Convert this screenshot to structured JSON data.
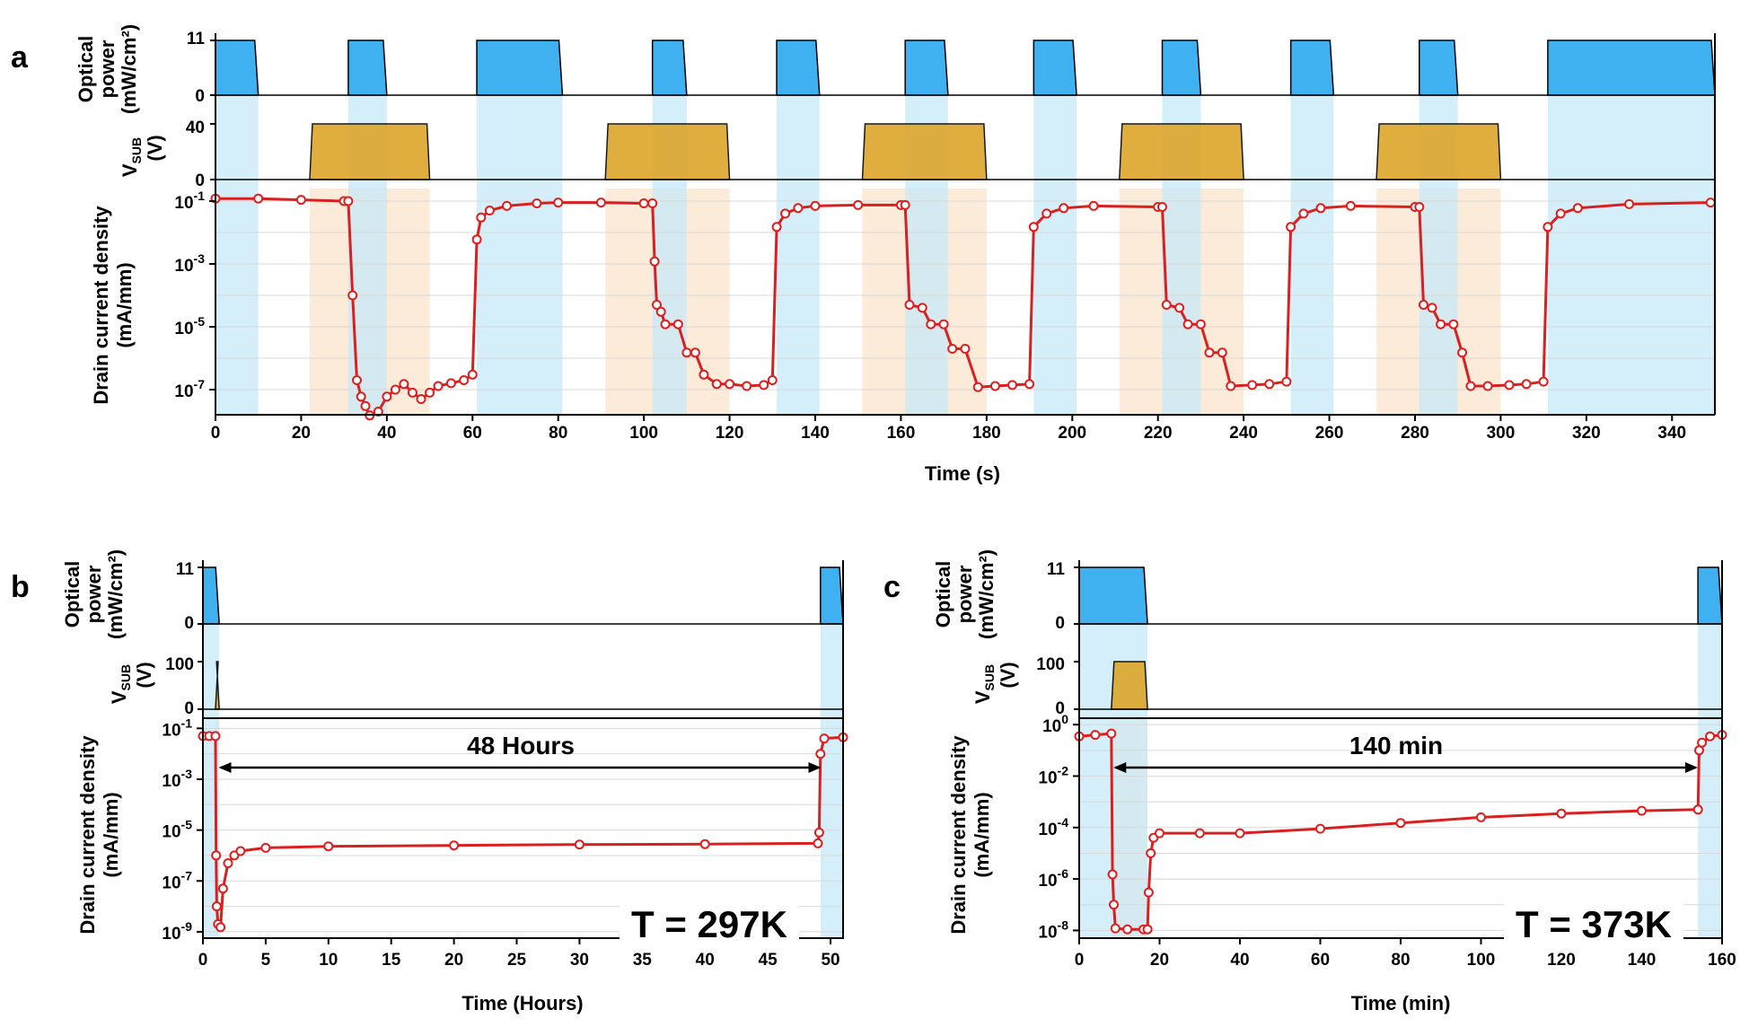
{
  "colors": {
    "light_on": "#3fb0f0",
    "light_band": "#c6e9f7",
    "vsub_fill": "#dca62a",
    "vsub_band": "#fde9d6",
    "data_line": "#d92020",
    "marker": "#e01e1e",
    "axis": "#000000"
  },
  "panels": {
    "a": {
      "label": "a",
      "optical_ylabel": [
        "Optical",
        "power",
        "(mW/cm²)"
      ],
      "optical_yticks": [
        "11",
        "0"
      ],
      "vsub_ylabel_main": "V",
      "vsub_ylabel_sub": "SUB",
      "vsub_ylabel_unit": "(V)",
      "vsub_yticks": [
        "40",
        "0"
      ],
      "current_ylabel": [
        "Drain current density",
        "(mA/mm)"
      ],
      "current_yticks": [
        {
          "base": "10",
          "exp": "-1"
        },
        {
          "base": "10",
          "exp": "-3"
        },
        {
          "base": "10",
          "exp": "-5"
        },
        {
          "base": "10",
          "exp": "-7"
        }
      ],
      "xlabel": "Time (s)",
      "xticks": [
        "0",
        "20",
        "40",
        "60",
        "80",
        "100",
        "120",
        "140",
        "160",
        "180",
        "200",
        "220",
        "240",
        "260",
        "280",
        "300",
        "320",
        "340"
      ]
    },
    "b": {
      "label": "b",
      "optical_ylabel": [
        "Optical",
        "power",
        "(mW/cm²)"
      ],
      "optical_yticks": [
        "11",
        "0"
      ],
      "vsub_ylabel_main": "V",
      "vsub_ylabel_sub": "SUB",
      "vsub_ylabel_unit": "(V)",
      "vsub_yticks": [
        "100",
        "0"
      ],
      "current_ylabel": [
        "Drain current density",
        "(mA/mm)"
      ],
      "current_yticks": [
        {
          "base": "10",
          "exp": "-1"
        },
        {
          "base": "10",
          "exp": "-3"
        },
        {
          "base": "10",
          "exp": "-5"
        },
        {
          "base": "10",
          "exp": "-7"
        },
        {
          "base": "10",
          "exp": "-9"
        }
      ],
      "xlabel": "Time (Hours)",
      "xticks": [
        "0",
        "5",
        "10",
        "15",
        "20",
        "25",
        "30",
        "35",
        "40",
        "45",
        "50"
      ],
      "annotation": "48 Hours",
      "temperature": "T = 297K"
    },
    "c": {
      "label": "c",
      "optical_ylabel": [
        "Optical",
        "power",
        "(mW/cm²)"
      ],
      "optical_yticks": [
        "11",
        "0"
      ],
      "vsub_ylabel_main": "V",
      "vsub_ylabel_sub": "SUB",
      "vsub_ylabel_unit": "(V)",
      "vsub_yticks": [
        "100",
        "0"
      ],
      "current_ylabel": [
        "Drain current density",
        "(mA/mm)"
      ],
      "current_yticks": [
        {
          "base": "10",
          "exp": "0"
        },
        {
          "base": "10",
          "exp": "-2"
        },
        {
          "base": "10",
          "exp": "-4"
        },
        {
          "base": "10",
          "exp": "-6"
        },
        {
          "base": "10",
          "exp": "-8"
        }
      ],
      "xlabel": "Time (min)",
      "xticks": [
        "0",
        "20",
        "40",
        "60",
        "80",
        "100",
        "120",
        "140",
        "160"
      ],
      "annotation": "140 min",
      "temperature": "T = 373K"
    }
  },
  "chart_data": [
    {
      "type": "line",
      "panel": "a",
      "title": "",
      "xlabel": "Time (s)",
      "xlim": [
        0,
        350
      ],
      "optical_power": {
        "ylabel": "Optical power (mW/cm²)",
        "ylim": [
          0,
          11
        ],
        "level": 11,
        "on_intervals": [
          [
            0,
            10
          ],
          [
            31,
            40
          ],
          [
            61,
            81
          ],
          [
            102,
            110
          ],
          [
            131,
            141
          ],
          [
            161,
            171
          ],
          [
            191,
            201
          ],
          [
            221,
            230
          ],
          [
            251,
            261
          ],
          [
            281,
            290
          ],
          [
            311,
            350
          ]
        ]
      },
      "vsub": {
        "ylabel": "VSUB (V)",
        "ylim": [
          0,
          40
        ],
        "level": 40,
        "on_intervals": [
          [
            22,
            50
          ],
          [
            91,
            120
          ],
          [
            151,
            180
          ],
          [
            211,
            240
          ],
          [
            271,
            300
          ]
        ]
      },
      "current": {
        "ylabel": "Drain current density (mA/mm)",
        "scale": "log",
        "ylim": [
          1e-08,
          0.5
        ],
        "points": [
          [
            0,
            0.12
          ],
          [
            10,
            0.12
          ],
          [
            20,
            0.11
          ],
          [
            30,
            0.1
          ],
          [
            31,
            0.1
          ],
          [
            32,
            0.0001
          ],
          [
            33,
            2e-07
          ],
          [
            34,
            6e-08
          ],
          [
            35,
            3e-08
          ],
          [
            36,
            1.5e-08
          ],
          [
            38,
            2e-08
          ],
          [
            40,
            6e-08
          ],
          [
            42,
            1e-07
          ],
          [
            44,
            1.5e-07
          ],
          [
            46,
            8e-08
          ],
          [
            48,
            5e-08
          ],
          [
            50,
            8e-08
          ],
          [
            52,
            1.3e-07
          ],
          [
            55,
            1.6e-07
          ],
          [
            58,
            2e-07
          ],
          [
            60,
            3e-07
          ],
          [
            61,
            0.006
          ],
          [
            62,
            0.03
          ],
          [
            64,
            0.05
          ],
          [
            68,
            0.07
          ],
          [
            75,
            0.085
          ],
          [
            80,
            0.09
          ],
          [
            90,
            0.09
          ],
          [
            100,
            0.085
          ],
          [
            102,
            0.085
          ],
          [
            102.5,
            0.0012
          ],
          [
            103,
            5e-05
          ],
          [
            104,
            3e-05
          ],
          [
            105,
            1.2e-05
          ],
          [
            108,
            1.2e-05
          ],
          [
            110,
            1.5e-06
          ],
          [
            112,
            1.5e-06
          ],
          [
            114,
            3e-07
          ],
          [
            117,
            1.5e-07
          ],
          [
            120,
            1.5e-07
          ],
          [
            124,
            1.3e-07
          ],
          [
            128,
            1.4e-07
          ],
          [
            130,
            2e-07
          ],
          [
            131,
            0.015
          ],
          [
            133,
            0.04
          ],
          [
            136,
            0.06
          ],
          [
            140,
            0.07
          ],
          [
            150,
            0.075
          ],
          [
            160,
            0.075
          ],
          [
            161,
            0.075
          ],
          [
            162,
            5e-05
          ],
          [
            165,
            4e-05
          ],
          [
            167,
            1.2e-05
          ],
          [
            170,
            1.2e-05
          ],
          [
            172,
            2e-06
          ],
          [
            175,
            2e-06
          ],
          [
            178,
            1.2e-07
          ],
          [
            182,
            1.3e-07
          ],
          [
            186,
            1.4e-07
          ],
          [
            190,
            1.5e-07
          ],
          [
            191,
            0.015
          ],
          [
            194,
            0.04
          ],
          [
            198,
            0.06
          ],
          [
            205,
            0.07
          ],
          [
            220,
            0.065
          ],
          [
            221,
            0.065
          ],
          [
            222,
            5e-05
          ],
          [
            225,
            4e-05
          ],
          [
            227,
            1.2e-05
          ],
          [
            230,
            1.2e-05
          ],
          [
            232,
            1.5e-06
          ],
          [
            235,
            1.5e-06
          ],
          [
            237,
            1.3e-07
          ],
          [
            242,
            1.4e-07
          ],
          [
            246,
            1.5e-07
          ],
          [
            250,
            1.8e-07
          ],
          [
            251,
            0.015
          ],
          [
            254,
            0.04
          ],
          [
            258,
            0.06
          ],
          [
            265,
            0.07
          ],
          [
            280,
            0.065
          ],
          [
            281,
            0.065
          ],
          [
            282,
            5e-05
          ],
          [
            284,
            4e-05
          ],
          [
            286,
            1.2e-05
          ],
          [
            289,
            1.2e-05
          ],
          [
            291,
            1.5e-06
          ],
          [
            293,
            1.3e-07
          ],
          [
            297,
            1.3e-07
          ],
          [
            302,
            1.4e-07
          ],
          [
            306,
            1.5e-07
          ],
          [
            310,
            1.8e-07
          ],
          [
            311,
            0.015
          ],
          [
            314,
            0.04
          ],
          [
            318,
            0.06
          ],
          [
            330,
            0.08
          ],
          [
            349,
            0.09
          ]
        ]
      }
    },
    {
      "type": "line",
      "panel": "b",
      "title": "",
      "xlabel": "Time (Hours)",
      "xlim": [
        0,
        51
      ],
      "optical_power": {
        "ylabel": "Optical power (mW/cm²)",
        "ylim": [
          0,
          11
        ],
        "level": 11,
        "on_intervals": [
          [
            0,
            1.3
          ],
          [
            49.2,
            51
          ]
        ]
      },
      "vsub": {
        "ylabel": "VSUB (V)",
        "ylim": [
          0,
          100
        ],
        "level": 100,
        "on_intervals": [
          [
            1,
            1.3
          ]
        ]
      },
      "current": {
        "ylabel": "Drain current density (mA/mm)",
        "scale": "log",
        "ylim": [
          5e-10,
          0.3
        ],
        "points": [
          [
            0,
            0.05
          ],
          [
            0.5,
            0.05
          ],
          [
            1.0,
            0.05
          ],
          [
            1.05,
            1e-06
          ],
          [
            1.1,
            1e-08
          ],
          [
            1.2,
            2e-09
          ],
          [
            1.4,
            1.5e-09
          ],
          [
            1.6,
            5e-08
          ],
          [
            2,
            5e-07
          ],
          [
            2.5,
            1e-06
          ],
          [
            3,
            1.5e-06
          ],
          [
            5,
            2e-06
          ],
          [
            10,
            2.3e-06
          ],
          [
            20,
            2.5e-06
          ],
          [
            30,
            2.7e-06
          ],
          [
            40,
            2.8e-06
          ],
          [
            49,
            3e-06
          ],
          [
            49.1,
            8e-06
          ],
          [
            49.2,
            0.01
          ],
          [
            49.5,
            0.04
          ],
          [
            51,
            0.045
          ]
        ]
      },
      "annotations": [
        "48 Hours",
        "T = 297K"
      ]
    },
    {
      "type": "line",
      "panel": "c",
      "title": "",
      "xlabel": "Time (min)",
      "xlim": [
        0,
        160
      ],
      "optical_power": {
        "ylabel": "Optical power (mW/cm²)",
        "ylim": [
          0,
          11
        ],
        "level": 11,
        "on_intervals": [
          [
            0,
            17
          ],
          [
            154,
            160
          ]
        ]
      },
      "vsub": {
        "ylabel": "VSUB (V)",
        "ylim": [
          0,
          100
        ],
        "level": 100,
        "on_intervals": [
          [
            8,
            17
          ]
        ]
      },
      "current": {
        "ylabel": "Drain current density (mA/mm)",
        "scale": "log",
        "ylim": [
          5e-09,
          2
        ],
        "points": [
          [
            0,
            0.35
          ],
          [
            4,
            0.4
          ],
          [
            8,
            0.45
          ],
          [
            8.3,
            1.5e-06
          ],
          [
            8.6,
            1e-07
          ],
          [
            9,
            1.2e-08
          ],
          [
            12,
            1.1e-08
          ],
          [
            16,
            1.1e-08
          ],
          [
            17,
            1.1e-08
          ],
          [
            17.3,
            3e-07
          ],
          [
            17.8,
            1e-05
          ],
          [
            18.5,
            4e-05
          ],
          [
            20,
            6e-05
          ],
          [
            30,
            6e-05
          ],
          [
            40,
            6e-05
          ],
          [
            60,
            9e-05
          ],
          [
            80,
            0.00015
          ],
          [
            100,
            0.00025
          ],
          [
            120,
            0.00035
          ],
          [
            140,
            0.00045
          ],
          [
            154,
            0.0005
          ],
          [
            154.3,
            0.1
          ],
          [
            155,
            0.2
          ],
          [
            157,
            0.35
          ],
          [
            160,
            0.4
          ]
        ]
      },
      "annotations": [
        "140 min",
        "T = 373K"
      ]
    }
  ]
}
